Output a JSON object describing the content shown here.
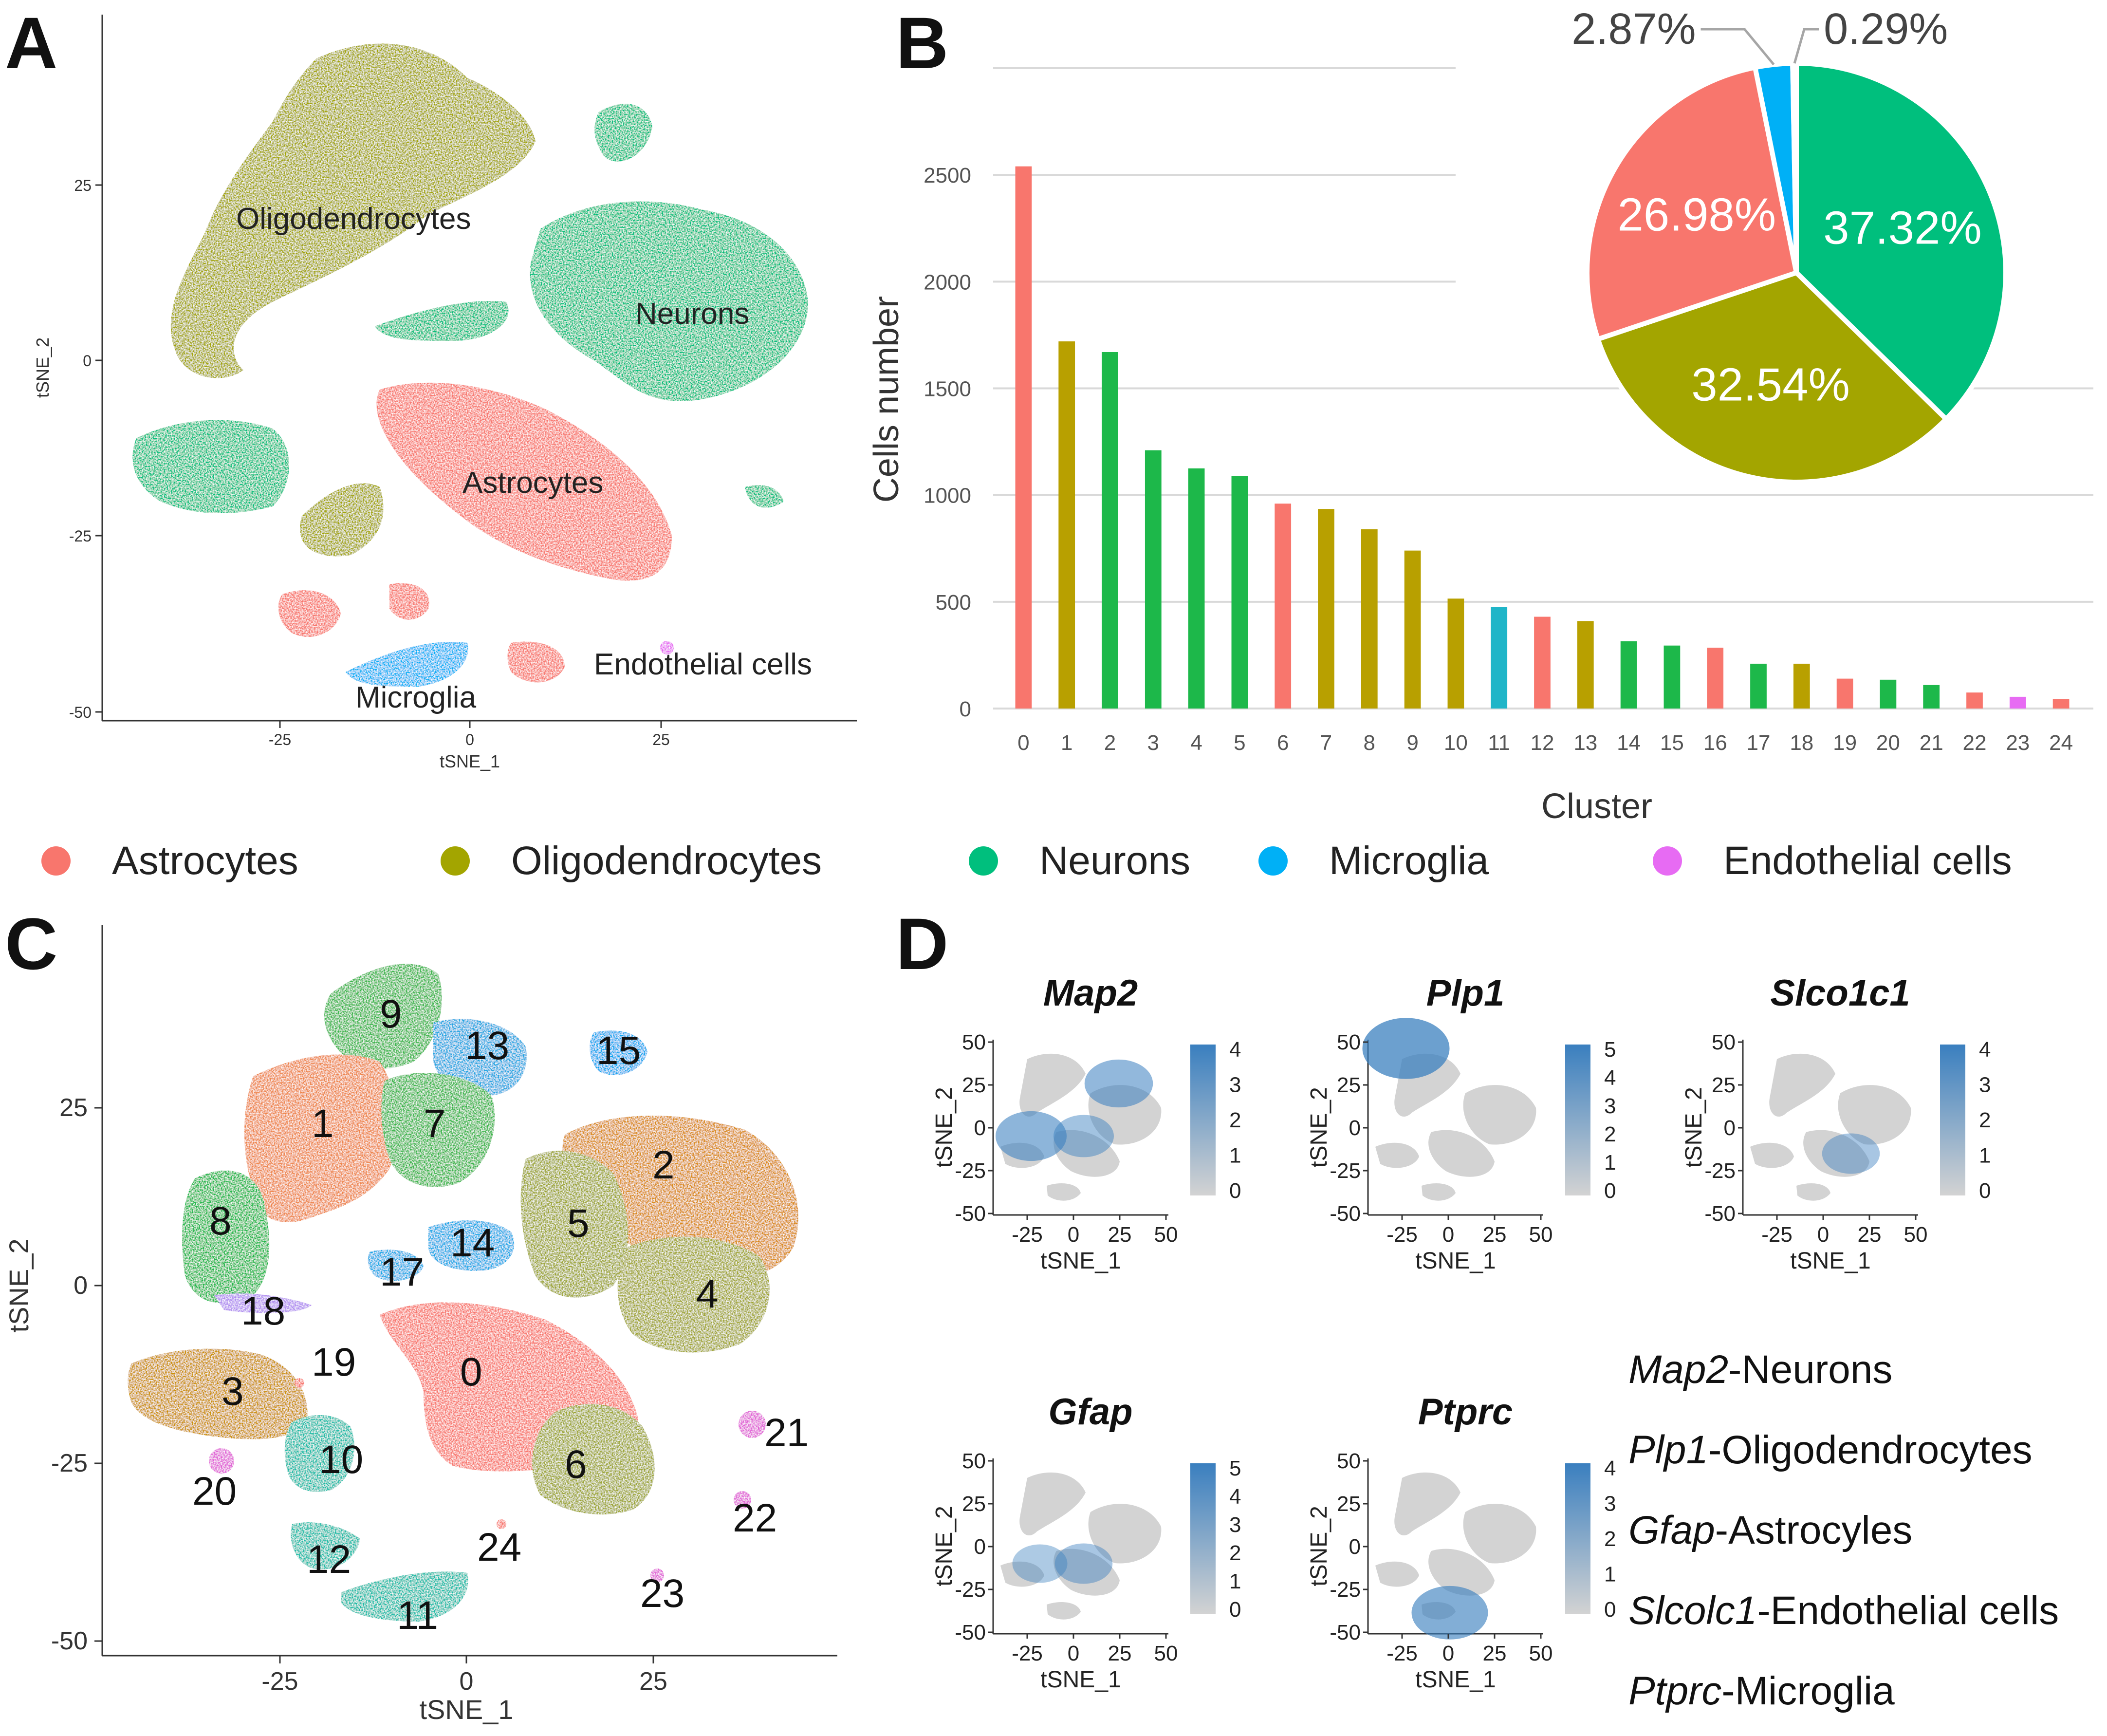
{
  "panel_labels": [
    "A",
    "B",
    "C",
    "D"
  ],
  "colors": {
    "Astrocytes": "#F8766D",
    "Oligodendrocytes": "#A3A500",
    "Neurons": "#00BF7D",
    "Microglia": "#00B0F6",
    "Endothelial cells": "#E76BF3",
    "bar_oligo": "#B8A000",
    "bar_neuron": "#1DB84A",
    "bar_micro": "#1FB5C8",
    "expr_low": "#D3D3D3",
    "expr_high": "#3A7FBF"
  },
  "panelA": {
    "xlabel": "tSNE_1",
    "ylabel": "tSNE_2",
    "xticks": [
      "-25",
      "0",
      "25"
    ],
    "yticks": [
      "25",
      "0",
      "-25",
      "-50"
    ],
    "cluster_labels": [
      "Oligodendrocytes",
      "Neurons",
      "Astrocytes",
      "Endothelial cells",
      "Microglia"
    ]
  },
  "chart_data": [
    {
      "type": "bar",
      "title": "",
      "xlabel": "Cluster",
      "ylabel": "Cells number",
      "ylim": [
        0,
        3000
      ],
      "yticks": [
        "0",
        "500",
        "1000",
        "1500",
        "2000",
        "2500"
      ],
      "categories": [
        "0",
        "1",
        "2",
        "3",
        "4",
        "5",
        "6",
        "7",
        "8",
        "9",
        "10",
        "11",
        "12",
        "13",
        "14",
        "15",
        "16",
        "17",
        "18",
        "19",
        "20",
        "21",
        "22",
        "23",
        "24"
      ],
      "values": [
        2540,
        1720,
        1670,
        1210,
        1125,
        1090,
        960,
        935,
        840,
        740,
        515,
        475,
        430,
        410,
        315,
        295,
        285,
        210,
        210,
        140,
        135,
        110,
        75,
        55,
        45
      ],
      "cell_types": [
        "Astrocytes",
        "Oligodendrocytes",
        "Neurons",
        "Neurons",
        "Neurons",
        "Neurons",
        "Astrocytes",
        "Oligodendrocytes",
        "Oligodendrocytes",
        "Oligodendrocytes",
        "Oligodendrocytes",
        "Microglia",
        "Astrocytes",
        "Oligodendrocytes",
        "Neurons",
        "Neurons",
        "Astrocytes",
        "Neurons",
        "Oligodendrocytes",
        "Astrocytes",
        "Neurons",
        "Neurons",
        "Astrocytes",
        "Endothelial cells",
        "Astrocytes"
      ]
    },
    {
      "type": "pie",
      "labels": [
        "Neurons",
        "Oligodendrocytes",
        "Astrocytes",
        "Microglia",
        "Endothelial cells"
      ],
      "values": [
        37.32,
        32.54,
        26.98,
        2.87,
        0.29
      ],
      "value_labels": [
        "37.32%",
        "32.54%",
        "26.98%",
        "2.87%",
        "0.29%"
      ]
    }
  ],
  "legend": [
    {
      "label": "Astrocytes",
      "color": "#F8766D"
    },
    {
      "label": "Oligodendrocytes",
      "color": "#A3A500"
    },
    {
      "label": "Neurons",
      "color": "#00BF7D"
    },
    {
      "label": "Microglia",
      "color": "#00B0F6"
    },
    {
      "label": "Endothelial cells",
      "color": "#E76BF3"
    }
  ],
  "panelC": {
    "xlabel": "tSNE_1",
    "ylabel": "tSNE_2",
    "xticks": [
      "-25",
      "0",
      "25"
    ],
    "yticks": [
      "25",
      "0",
      "-25",
      "-50"
    ],
    "cluster_numbers": [
      "0",
      "1",
      "2",
      "3",
      "4",
      "5",
      "6",
      "7",
      "8",
      "9",
      "10",
      "11",
      "12",
      "13",
      "14",
      "15",
      "17",
      "18",
      "19",
      "20",
      "21",
      "22",
      "23",
      "24"
    ]
  },
  "panelD": {
    "xlabel": "tSNE_1",
    "ylabel": "tSNE_2",
    "xticks": [
      "-25",
      "0",
      "25",
      "50"
    ],
    "yticks": [
      "50",
      "25",
      "0",
      "-25",
      "-50"
    ],
    "genes": [
      {
        "name": "Map2",
        "scale": [
          "4",
          "3",
          "2",
          "1",
          "0"
        ]
      },
      {
        "name": "Plp1",
        "scale": [
          "5",
          "4",
          "3",
          "2",
          "1",
          "0"
        ]
      },
      {
        "name": "Slco1c1",
        "scale": [
          "4",
          "3",
          "2",
          "1",
          "0"
        ]
      },
      {
        "name": "Gfap",
        "scale": [
          "5",
          "4",
          "3",
          "2",
          "1",
          "0"
        ]
      },
      {
        "name": "Ptprc",
        "scale": [
          "4",
          "3",
          "2",
          "1",
          "0"
        ]
      }
    ],
    "markers": [
      {
        "gene": "Map2",
        "type": "-Neurons"
      },
      {
        "gene": "Plp1",
        "type": "-Oligodendrocytes"
      },
      {
        "gene": "Gfap",
        "type": "-Astrocyles"
      },
      {
        "gene": "Slcolc1",
        "type": "-Endothelial cells"
      },
      {
        "gene": "Ptprc",
        "type": "-Microglia"
      }
    ]
  }
}
